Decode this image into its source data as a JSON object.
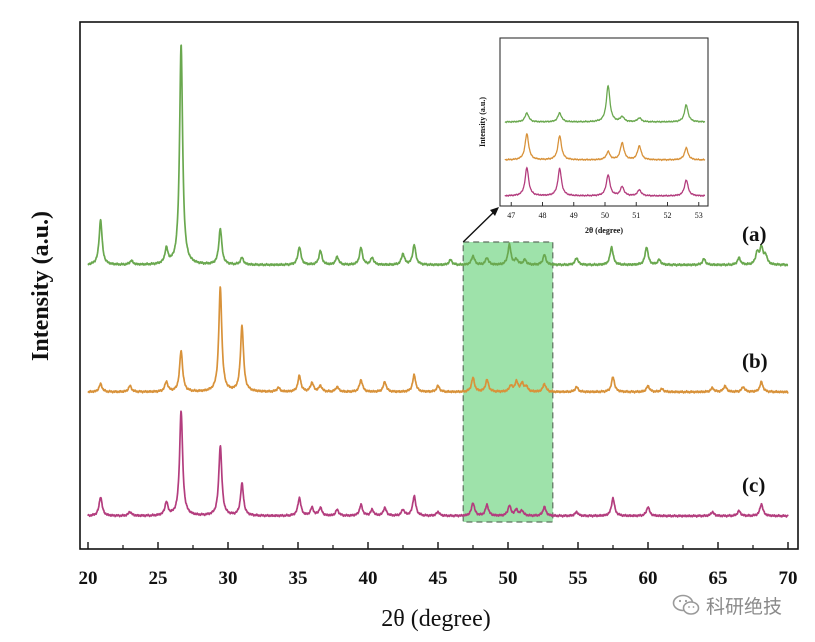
{
  "chart_data": {
    "type": "line",
    "title": "",
    "xlabel": "2θ (degree)",
    "ylabel": "Intensity (a.u.)",
    "xlim": [
      20,
      70
    ],
    "xticks": [
      "20",
      "25",
      "30",
      "35",
      "40",
      "45",
      "50",
      "55",
      "60",
      "65",
      "70"
    ],
    "grid": false,
    "legend": "none",
    "highlight_region": {
      "x": [
        46.8,
        53.2
      ],
      "color": "#7ed88e"
    },
    "peak_width": 0.13,
    "series": [
      {
        "name": "(a)",
        "color": "#6aa84f",
        "baseline": 0,
        "peaks": [
          [
            20.9,
            45
          ],
          [
            23.1,
            4
          ],
          [
            25.6,
            15
          ],
          [
            26.65,
            220
          ],
          [
            29.45,
            36
          ],
          [
            31.0,
            7
          ],
          [
            35.1,
            18
          ],
          [
            36.6,
            14
          ],
          [
            37.8,
            8
          ],
          [
            39.5,
            17
          ],
          [
            40.3,
            7
          ],
          [
            42.5,
            11
          ],
          [
            43.3,
            20
          ],
          [
            45.9,
            5
          ],
          [
            47.5,
            9
          ],
          [
            48.5,
            7
          ],
          [
            50.1,
            20
          ],
          [
            50.6,
            5
          ],
          [
            51.2,
            5
          ],
          [
            52.6,
            10
          ],
          [
            54.9,
            7
          ],
          [
            57.4,
            18
          ],
          [
            59.9,
            18
          ],
          [
            60.8,
            5
          ],
          [
            64.0,
            6
          ],
          [
            66.5,
            7
          ],
          [
            67.8,
            12
          ],
          [
            68.1,
            17
          ],
          [
            68.4,
            9
          ]
        ]
      },
      {
        "name": "(b)",
        "color": "#d8923a",
        "baseline": 0,
        "peaks": [
          [
            20.9,
            8
          ],
          [
            23.0,
            6
          ],
          [
            25.6,
            10
          ],
          [
            26.65,
            41
          ],
          [
            29.45,
            104
          ],
          [
            31.0,
            66
          ],
          [
            33.6,
            4
          ],
          [
            35.1,
            16
          ],
          [
            36.0,
            9
          ],
          [
            36.6,
            6
          ],
          [
            37.8,
            5
          ],
          [
            39.5,
            12
          ],
          [
            41.2,
            10
          ],
          [
            43.3,
            17
          ],
          [
            45.0,
            6
          ],
          [
            47.5,
            14
          ],
          [
            48.5,
            12
          ],
          [
            50.2,
            6
          ],
          [
            50.6,
            10
          ],
          [
            51.0,
            8
          ],
          [
            51.3,
            5
          ],
          [
            52.6,
            8
          ],
          [
            54.9,
            5
          ],
          [
            57.5,
            15
          ],
          [
            60.0,
            6
          ],
          [
            61.0,
            3
          ],
          [
            64.6,
            4
          ],
          [
            65.5,
            6
          ],
          [
            66.8,
            5
          ],
          [
            68.1,
            10
          ]
        ]
      },
      {
        "name": "(c)",
        "color": "#b33d7e",
        "baseline": 0,
        "peaks": [
          [
            20.9,
            19
          ],
          [
            23.0,
            4
          ],
          [
            25.6,
            13
          ],
          [
            26.65,
            105
          ],
          [
            29.45,
            70
          ],
          [
            31.0,
            32
          ],
          [
            35.1,
            18
          ],
          [
            36.0,
            8
          ],
          [
            36.6,
            8
          ],
          [
            37.8,
            6
          ],
          [
            39.5,
            11
          ],
          [
            40.3,
            6
          ],
          [
            41.2,
            8
          ],
          [
            42.5,
            6
          ],
          [
            43.3,
            20
          ],
          [
            45.0,
            4
          ],
          [
            47.5,
            13
          ],
          [
            48.5,
            11
          ],
          [
            50.1,
            10
          ],
          [
            50.6,
            6
          ],
          [
            51.0,
            5
          ],
          [
            52.6,
            9
          ],
          [
            54.9,
            4
          ],
          [
            57.5,
            18
          ],
          [
            60.0,
            9
          ],
          [
            64.6,
            4
          ],
          [
            66.5,
            5
          ],
          [
            68.1,
            12
          ]
        ]
      }
    ],
    "inset": {
      "xlabel": "2θ (degree)",
      "ylabel": "Intensity (a.u.)",
      "xlim": [
        46.8,
        53.2
      ],
      "xticks": [
        "47",
        "48",
        "49",
        "50",
        "51",
        "52",
        "53"
      ],
      "peak_width": 0.07,
      "series": [
        {
          "name": "(a)",
          "color": "#6aa84f",
          "peaks": [
            [
              47.5,
              9
            ],
            [
              48.55,
              9
            ],
            [
              50.1,
              36
            ],
            [
              50.55,
              5
            ],
            [
              51.1,
              4
            ],
            [
              52.6,
              17
            ]
          ]
        },
        {
          "name": "(b)",
          "color": "#d8923a",
          "peaks": [
            [
              47.5,
              26
            ],
            [
              48.55,
              24
            ],
            [
              50.1,
              8
            ],
            [
              50.55,
              17
            ],
            [
              51.1,
              14
            ],
            [
              52.6,
              12
            ]
          ]
        },
        {
          "name": "(c)",
          "color": "#b33d7e",
          "peaks": [
            [
              47.5,
              28
            ],
            [
              48.55,
              27
            ],
            [
              50.1,
              21
            ],
            [
              50.55,
              9
            ],
            [
              51.1,
              6
            ],
            [
              52.6,
              16
            ]
          ]
        }
      ]
    }
  },
  "watermark": {
    "text": "科研绝技",
    "icon": "wechat-icon"
  }
}
